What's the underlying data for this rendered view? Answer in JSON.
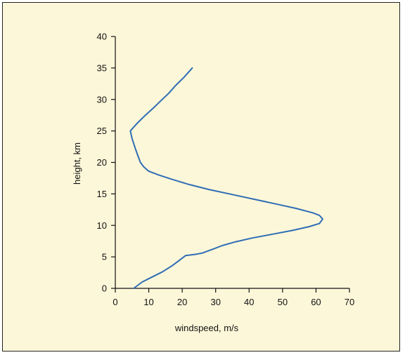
{
  "colors": {
    "background": "#fdf7d9",
    "axis": "#111111",
    "line": "#2f6db5",
    "border": "#222222"
  },
  "chart_data": {
    "type": "line",
    "title": "",
    "xlabel": "windspeed, m/s",
    "ylabel": "height, km",
    "xlim": [
      0,
      70
    ],
    "ylim": [
      0,
      40
    ],
    "x_ticks": [
      "0",
      "10",
      "20",
      "30",
      "40",
      "50",
      "60",
      "70"
    ],
    "y_ticks": [
      "0",
      "5",
      "10",
      "15",
      "20",
      "25",
      "30",
      "35",
      "40"
    ],
    "grid": false,
    "legend": "none",
    "series": [
      {
        "color": "#2f6db5",
        "points": [
          [
            5.5,
            0
          ],
          [
            8,
            1
          ],
          [
            11,
            1.8
          ],
          [
            14,
            2.6
          ],
          [
            17,
            3.6
          ],
          [
            19.5,
            4.6
          ],
          [
            21,
            5.2
          ],
          [
            24,
            5.4
          ],
          [
            26,
            5.6
          ],
          [
            29,
            6.2
          ],
          [
            32,
            6.8
          ],
          [
            36,
            7.4
          ],
          [
            41,
            8
          ],
          [
            47,
            8.6
          ],
          [
            53,
            9.2
          ],
          [
            58,
            9.8
          ],
          [
            61,
            10.3
          ],
          [
            62,
            11
          ],
          [
            61,
            11.6
          ],
          [
            59,
            12
          ],
          [
            54,
            12.7
          ],
          [
            48,
            13.4
          ],
          [
            42,
            14.1
          ],
          [
            35,
            14.9
          ],
          [
            28,
            15.7
          ],
          [
            22,
            16.5
          ],
          [
            17,
            17.3
          ],
          [
            13,
            18
          ],
          [
            10,
            18.6
          ],
          [
            8.5,
            19.3
          ],
          [
            7.5,
            20
          ],
          [
            6.8,
            21
          ],
          [
            6,
            22.2
          ],
          [
            5,
            23.8
          ],
          [
            4.5,
            25
          ],
          [
            6.5,
            26.2
          ],
          [
            9,
            27.5
          ],
          [
            11.5,
            28.7
          ],
          [
            14,
            30
          ],
          [
            16,
            31
          ],
          [
            18,
            32.2
          ],
          [
            20.5,
            33.5
          ],
          [
            23,
            35
          ]
        ]
      }
    ]
  }
}
